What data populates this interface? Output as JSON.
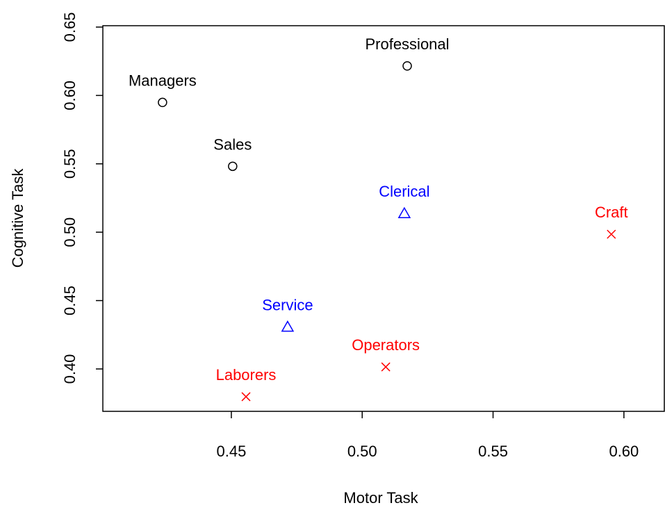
{
  "chart_data": {
    "type": "scatter",
    "xlabel": "Motor Task",
    "ylabel": "Cognitive Task",
    "xlim": [
      0.4009,
      0.6157
    ],
    "ylim": [
      0.369,
      0.651
    ],
    "xticks": [
      0.45,
      {
        "value": 0.5,
        "label": "0.50"
      },
      0.55,
      {
        "value": 0.6,
        "label": "0.60"
      }
    ],
    "yticks": [
      {
        "value": 0.4,
        "label": "0.40"
      },
      0.45,
      {
        "value": 0.5,
        "label": "0.50"
      },
      0.55,
      {
        "value": 0.6,
        "label": "0.60"
      },
      0.65
    ],
    "series": [
      {
        "color": "#000000",
        "marker": "circle",
        "labels": [
          "Managers",
          "Professional",
          "Sales"
        ],
        "x": [
          0.4237,
          0.5172,
          0.4505
        ],
        "values": [
          0.5949,
          0.6216,
          0.5482
        ]
      },
      {
        "color": "#0000ff",
        "marker": "triangle",
        "labels": [
          "Clerical",
          "Service"
        ],
        "x": [
          0.5161,
          0.4715
        ],
        "values": [
          0.5137,
          0.4307
        ]
      },
      {
        "color": "#ff0000",
        "marker": "cross",
        "labels": [
          "Craft",
          "Operators",
          "Laborers"
        ],
        "x": [
          0.5952,
          0.509,
          0.4556
        ],
        "values": [
          0.4985,
          0.4015,
          0.3797
        ]
      }
    ]
  }
}
